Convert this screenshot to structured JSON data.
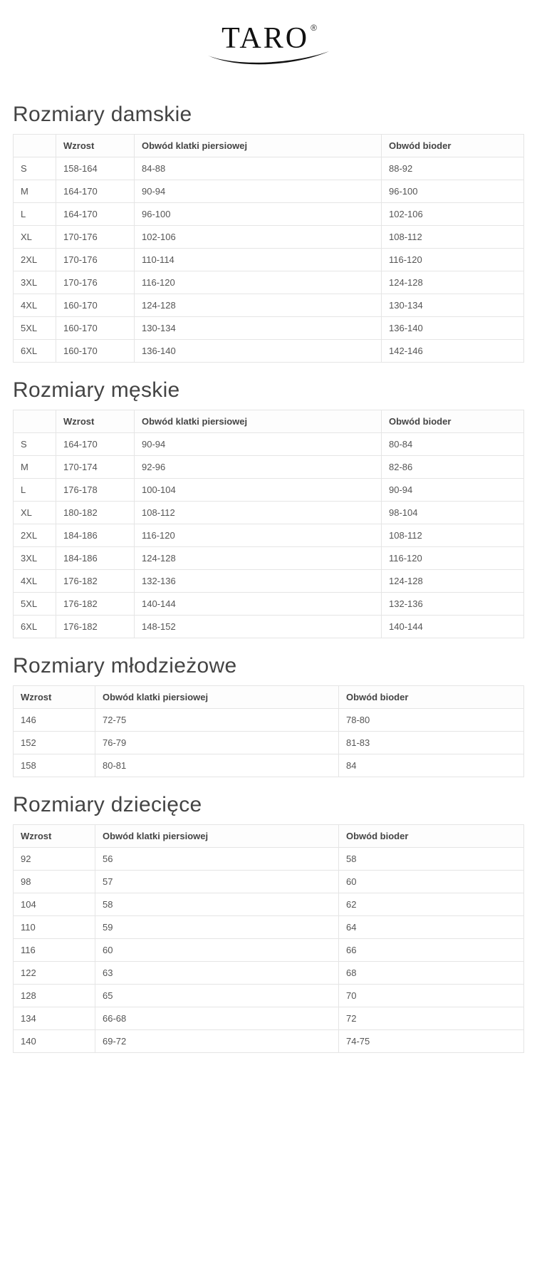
{
  "brand": {
    "name": "TARO",
    "registered": "®"
  },
  "sections": [
    {
      "title": "Rozmiary damskie",
      "columns": [
        "",
        "Wzrost",
        "Obwód klatki piersiowej",
        "Obwód bioder"
      ],
      "col_widths": [
        "60px",
        "110px",
        "auto",
        "200px"
      ],
      "rows": [
        [
          "S",
          "158-164",
          "84-88",
          "88-92"
        ],
        [
          "M",
          "164-170",
          "90-94",
          "96-100"
        ],
        [
          "L",
          "164-170",
          "96-100",
          "102-106"
        ],
        [
          "XL",
          "170-176",
          "102-106",
          "108-112"
        ],
        [
          "2XL",
          "170-176",
          "110-114",
          "116-120"
        ],
        [
          "3XL",
          "170-176",
          "116-120",
          "124-128"
        ],
        [
          "4XL",
          "160-170",
          "124-128",
          "130-134"
        ],
        [
          "5XL",
          "160-170",
          "130-134",
          "136-140"
        ],
        [
          "6XL",
          "160-170",
          "136-140",
          "142-146"
        ]
      ]
    },
    {
      "title": "Rozmiary męskie",
      "columns": [
        "",
        "Wzrost",
        "Obwód klatki piersiowej",
        "Obwód bioder"
      ],
      "col_widths": [
        "60px",
        "110px",
        "auto",
        "200px"
      ],
      "rows": [
        [
          "S",
          "164-170",
          "90-94",
          "80-84"
        ],
        [
          "M",
          "170-174",
          "92-96",
          "82-86"
        ],
        [
          "L",
          "176-178",
          "100-104",
          "90-94"
        ],
        [
          "XL",
          "180-182",
          "108-112",
          "98-104"
        ],
        [
          "2XL",
          "184-186",
          "116-120",
          "108-112"
        ],
        [
          "3XL",
          "184-186",
          "124-128",
          "116-120"
        ],
        [
          "4XL",
          "176-182",
          "132-136",
          "124-128"
        ],
        [
          "5XL",
          "176-182",
          "140-144",
          "132-136"
        ],
        [
          "6XL",
          "176-182",
          "148-152",
          "140-144"
        ]
      ]
    },
    {
      "title": "Rozmiary młodzieżowe",
      "columns": [
        "Wzrost",
        "Obwód klatki piersiowej",
        "Obwód bioder"
      ],
      "col_widths": [
        "115px",
        "auto",
        "260px"
      ],
      "rows": [
        [
          "146",
          "72-75",
          "78-80"
        ],
        [
          "152",
          "76-79",
          "81-83"
        ],
        [
          "158",
          "80-81",
          "84"
        ]
      ]
    },
    {
      "title": "Rozmiary dziecięce",
      "columns": [
        "Wzrost",
        "Obwód klatki piersiowej",
        "Obwód bioder"
      ],
      "col_widths": [
        "115px",
        "auto",
        "260px"
      ],
      "rows": [
        [
          "92",
          "56",
          "58"
        ],
        [
          "98",
          "57",
          "60"
        ],
        [
          "104",
          "58",
          "62"
        ],
        [
          "110",
          "59",
          "64"
        ],
        [
          "116",
          "60",
          "66"
        ],
        [
          "122",
          "63",
          "68"
        ],
        [
          "128",
          "65",
          "70"
        ],
        [
          "134",
          "66-68",
          "72"
        ],
        [
          "140",
          "69-72",
          "74-75"
        ]
      ]
    }
  ],
  "styling": {
    "background_color": "#ffffff",
    "text_color": "#555555",
    "heading_color": "#444444",
    "border_color": "#e5e5e5",
    "heading_fontsize": 30,
    "table_fontsize": 13
  }
}
